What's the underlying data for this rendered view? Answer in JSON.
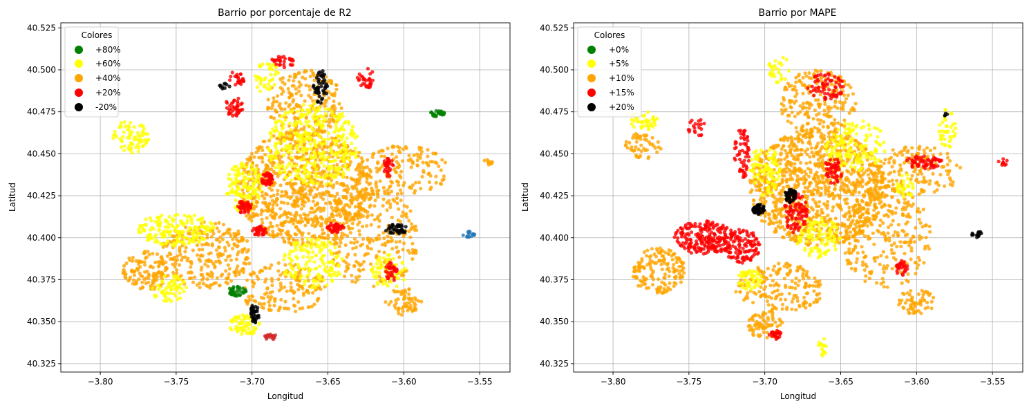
{
  "chart_data": [
    {
      "type": "scatter",
      "title": "Barrio por porcentaje de R2",
      "xlabel": "Longitud",
      "ylabel": "Latitud",
      "xlim": [
        -3.826,
        -3.53
      ],
      "ylim": [
        40.32,
        40.528
      ],
      "xticks": [
        -3.8,
        -3.75,
        -3.7,
        -3.65,
        -3.6,
        -3.55
      ],
      "xtick_labels": [
        "−3.80",
        "−3.75",
        "−3.70",
        "−3.65",
        "−3.60",
        "−3.55"
      ],
      "yticks": [
        40.325,
        40.35,
        40.375,
        40.4,
        40.425,
        40.45,
        40.475,
        40.5,
        40.525
      ],
      "ytick_labels": [
        "40.325",
        "40.350",
        "40.375",
        "40.400",
        "40.425",
        "40.450",
        "40.475",
        "40.500",
        "40.525"
      ],
      "grid": true,
      "legend": {
        "title": "Colores",
        "placement": "top-left",
        "entries": [
          {
            "label": "+80%",
            "color": "#008000"
          },
          {
            "label": "+60%",
            "color": "#ffff00"
          },
          {
            "label": "+40%",
            "color": "#ffa500"
          },
          {
            "label": "+20%",
            "color": "#ff0000"
          },
          {
            "label": "-20%",
            "color": "#000000"
          }
        ]
      },
      "clusters": [
        {
          "color": "#ffa500",
          "lon": -3.665,
          "lat": 40.43,
          "r_lon": 0.045,
          "r_lat": 0.035,
          "n": 900
        },
        {
          "color": "#ffa500",
          "lon": -3.73,
          "lat": 40.39,
          "r_lon": 0.03,
          "r_lat": 0.02,
          "n": 260
        },
        {
          "color": "#ffa500",
          "lon": -3.77,
          "lat": 40.38,
          "r_lon": 0.015,
          "r_lat": 0.012,
          "n": 120
        },
        {
          "color": "#ffa500",
          "lon": -3.62,
          "lat": 40.4,
          "r_lon": 0.03,
          "r_lat": 0.03,
          "n": 260
        },
        {
          "color": "#ffa500",
          "lon": -3.6,
          "lat": 40.44,
          "r_lon": 0.03,
          "r_lat": 0.015,
          "n": 140
        },
        {
          "color": "#ffa500",
          "lon": -3.665,
          "lat": 40.48,
          "r_lon": 0.025,
          "r_lat": 0.02,
          "n": 200
        },
        {
          "color": "#ffa500",
          "lon": -3.68,
          "lat": 40.37,
          "r_lon": 0.03,
          "r_lat": 0.015,
          "n": 160
        },
        {
          "color": "#ffa500",
          "lon": -3.6,
          "lat": 40.362,
          "r_lon": 0.012,
          "r_lat": 0.008,
          "n": 60
        },
        {
          "color": "#ffa500",
          "lon": -3.545,
          "lat": 40.445,
          "r_lon": 0.004,
          "r_lat": 0.002,
          "n": 10
        },
        {
          "color": "#ffff00",
          "lon": -3.66,
          "lat": 40.455,
          "r_lon": 0.03,
          "r_lat": 0.025,
          "n": 360
        },
        {
          "color": "#ffff00",
          "lon": -3.75,
          "lat": 40.405,
          "r_lon": 0.025,
          "r_lat": 0.01,
          "n": 170
        },
        {
          "color": "#ffff00",
          "lon": -3.705,
          "lat": 40.43,
          "r_lon": 0.012,
          "r_lat": 0.015,
          "n": 120
        },
        {
          "color": "#ffff00",
          "lon": -3.66,
          "lat": 40.385,
          "r_lon": 0.02,
          "r_lat": 0.015,
          "n": 150
        },
        {
          "color": "#ffff00",
          "lon": -3.78,
          "lat": 40.46,
          "r_lon": 0.012,
          "r_lat": 0.01,
          "n": 70
        },
        {
          "color": "#ffff00",
          "lon": -3.755,
          "lat": 40.37,
          "r_lon": 0.012,
          "r_lat": 0.008,
          "n": 60
        },
        {
          "color": "#ffff00",
          "lon": -3.705,
          "lat": 40.348,
          "r_lon": 0.01,
          "r_lat": 0.006,
          "n": 60
        },
        {
          "color": "#ffff00",
          "lon": -3.69,
          "lat": 40.495,
          "r_lon": 0.008,
          "r_lat": 0.01,
          "n": 40
        },
        {
          "color": "#ffff00",
          "lon": -3.61,
          "lat": 40.38,
          "r_lon": 0.012,
          "r_lat": 0.01,
          "n": 60
        },
        {
          "color": "#ff0000",
          "lon": -3.69,
          "lat": 40.435,
          "r_lon": 0.004,
          "r_lat": 0.004,
          "n": 40
        },
        {
          "color": "#ff0000",
          "lon": -3.705,
          "lat": 40.418,
          "r_lon": 0.005,
          "r_lat": 0.004,
          "n": 40
        },
        {
          "color": "#ff0000",
          "lon": -3.695,
          "lat": 40.404,
          "r_lon": 0.005,
          "r_lat": 0.003,
          "n": 40
        },
        {
          "color": "#ff0000",
          "lon": -3.712,
          "lat": 40.478,
          "r_lon": 0.006,
          "r_lat": 0.006,
          "n": 40
        },
        {
          "color": "#ff0000",
          "lon": -3.645,
          "lat": 40.406,
          "r_lon": 0.006,
          "r_lat": 0.003,
          "n": 40
        },
        {
          "color": "#ff0000",
          "lon": -3.608,
          "lat": 40.38,
          "r_lon": 0.004,
          "r_lat": 0.006,
          "n": 30
        },
        {
          "color": "#ff0000",
          "lon": -3.61,
          "lat": 40.442,
          "r_lon": 0.004,
          "r_lat": 0.006,
          "n": 30
        },
        {
          "color": "#ff0000",
          "lon": -3.625,
          "lat": 40.495,
          "r_lon": 0.006,
          "r_lat": 0.006,
          "n": 30
        },
        {
          "color": "#ff0000",
          "lon": -3.68,
          "lat": 40.505,
          "r_lon": 0.008,
          "r_lat": 0.004,
          "n": 30
        },
        {
          "color": "#ff0000",
          "lon": -3.71,
          "lat": 40.495,
          "r_lon": 0.006,
          "r_lat": 0.004,
          "n": 25
        },
        {
          "color": "#d22b2b",
          "lon": -3.688,
          "lat": 40.341,
          "r_lon": 0.004,
          "r_lat": 0.002,
          "n": 20
        },
        {
          "color": "#000000",
          "lon": -3.655,
          "lat": 40.49,
          "r_lon": 0.005,
          "r_lat": 0.01,
          "n": 50
        },
        {
          "color": "#000000",
          "lon": -3.605,
          "lat": 40.405,
          "r_lon": 0.008,
          "r_lat": 0.003,
          "n": 40
        },
        {
          "color": "#000000",
          "lon": -3.698,
          "lat": 40.355,
          "r_lon": 0.003,
          "r_lat": 0.006,
          "n": 35
        },
        {
          "color": "#000000",
          "lon": -3.718,
          "lat": 40.49,
          "r_lon": 0.004,
          "r_lat": 0.002,
          "n": 10
        },
        {
          "color": "#008000",
          "lon": -3.71,
          "lat": 40.368,
          "r_lon": 0.006,
          "r_lat": 0.003,
          "n": 40
        },
        {
          "color": "#008000",
          "lon": -3.578,
          "lat": 40.474,
          "r_lon": 0.005,
          "r_lat": 0.002,
          "n": 25
        },
        {
          "color": "#1f77b4",
          "lon": -3.557,
          "lat": 40.402,
          "r_lon": 0.004,
          "r_lat": 0.002,
          "n": 15
        }
      ]
    },
    {
      "type": "scatter",
      "title": "Barrio por MAPE",
      "xlabel": "Longitud",
      "ylabel": "Latitud",
      "xlim": [
        -3.826,
        -3.53
      ],
      "ylim": [
        40.32,
        40.528
      ],
      "xticks": [
        -3.8,
        -3.75,
        -3.7,
        -3.65,
        -3.6,
        -3.55
      ],
      "xtick_labels": [
        "−3.80",
        "−3.75",
        "−3.70",
        "−3.65",
        "−3.60",
        "−3.55"
      ],
      "yticks": [
        40.325,
        40.35,
        40.375,
        40.4,
        40.425,
        40.45,
        40.475,
        40.5,
        40.525
      ],
      "ytick_labels": [
        "40.325",
        "40.350",
        "40.375",
        "40.400",
        "40.425",
        "40.450",
        "40.475",
        "40.500",
        "40.525"
      ],
      "grid": true,
      "legend": {
        "title": "Colores",
        "placement": "top-left",
        "entries": [
          {
            "label": "+0%",
            "color": "#008000"
          },
          {
            "label": "+5%",
            "color": "#ffff00"
          },
          {
            "label": "+10%",
            "color": "#ffa500"
          },
          {
            "label": "+15%",
            "color": "#ff0000"
          },
          {
            "label": "+20%",
            "color": "#000000"
          }
        ]
      },
      "clusters": [
        {
          "color": "#ffa500",
          "lon": -3.665,
          "lat": 40.43,
          "r_lon": 0.045,
          "r_lat": 0.035,
          "n": 1000
        },
        {
          "color": "#ffa500",
          "lon": -3.77,
          "lat": 40.38,
          "r_lon": 0.018,
          "r_lat": 0.014,
          "n": 160
        },
        {
          "color": "#ffa500",
          "lon": -3.62,
          "lat": 40.4,
          "r_lon": 0.03,
          "r_lat": 0.03,
          "n": 260
        },
        {
          "color": "#ffa500",
          "lon": -3.6,
          "lat": 40.44,
          "r_lon": 0.03,
          "r_lat": 0.015,
          "n": 140
        },
        {
          "color": "#ffa500",
          "lon": -3.665,
          "lat": 40.48,
          "r_lon": 0.025,
          "r_lat": 0.02,
          "n": 200
        },
        {
          "color": "#ffa500",
          "lon": -3.69,
          "lat": 40.37,
          "r_lon": 0.03,
          "r_lat": 0.015,
          "n": 180
        },
        {
          "color": "#ffa500",
          "lon": -3.7,
          "lat": 40.348,
          "r_lon": 0.012,
          "r_lat": 0.008,
          "n": 70
        },
        {
          "color": "#ffa500",
          "lon": -3.6,
          "lat": 40.362,
          "r_lon": 0.012,
          "r_lat": 0.008,
          "n": 60
        },
        {
          "color": "#ffa500",
          "lon": -3.78,
          "lat": 40.455,
          "r_lon": 0.012,
          "r_lat": 0.008,
          "n": 50
        },
        {
          "color": "#ffff00",
          "lon": -3.64,
          "lat": 40.455,
          "r_lon": 0.02,
          "r_lat": 0.015,
          "n": 140
        },
        {
          "color": "#ffff00",
          "lon": -3.7,
          "lat": 40.44,
          "r_lon": 0.01,
          "r_lat": 0.015,
          "n": 90
        },
        {
          "color": "#ffff00",
          "lon": -3.665,
          "lat": 40.4,
          "r_lon": 0.015,
          "r_lat": 0.012,
          "n": 100
        },
        {
          "color": "#ffff00",
          "lon": -3.71,
          "lat": 40.375,
          "r_lon": 0.008,
          "r_lat": 0.006,
          "n": 50
        },
        {
          "color": "#ffff00",
          "lon": -3.78,
          "lat": 40.47,
          "r_lon": 0.01,
          "r_lat": 0.006,
          "n": 40
        },
        {
          "color": "#ffff00",
          "lon": -3.58,
          "lat": 40.465,
          "r_lon": 0.006,
          "r_lat": 0.012,
          "n": 40
        },
        {
          "color": "#ffff00",
          "lon": -3.69,
          "lat": 40.5,
          "r_lon": 0.008,
          "r_lat": 0.008,
          "n": 30
        },
        {
          "color": "#ffff00",
          "lon": -3.608,
          "lat": 40.43,
          "r_lon": 0.006,
          "r_lat": 0.008,
          "n": 30
        },
        {
          "color": "#ffff00",
          "lon": -3.662,
          "lat": 40.335,
          "r_lon": 0.003,
          "r_lat": 0.006,
          "n": 15
        },
        {
          "color": "#ff0000",
          "lon": -3.74,
          "lat": 40.4,
          "r_lon": 0.02,
          "r_lat": 0.01,
          "n": 220
        },
        {
          "color": "#ff0000",
          "lon": -3.715,
          "lat": 40.395,
          "r_lon": 0.012,
          "r_lat": 0.01,
          "n": 120
        },
        {
          "color": "#ff0000",
          "lon": -3.68,
          "lat": 40.415,
          "r_lon": 0.008,
          "r_lat": 0.012,
          "n": 90
        },
        {
          "color": "#ff0000",
          "lon": -3.655,
          "lat": 40.44,
          "r_lon": 0.006,
          "r_lat": 0.008,
          "n": 50
        },
        {
          "color": "#ff0000",
          "lon": -3.66,
          "lat": 40.49,
          "r_lon": 0.012,
          "r_lat": 0.008,
          "n": 70
        },
        {
          "color": "#ff0000",
          "lon": -3.715,
          "lat": 40.45,
          "r_lon": 0.005,
          "r_lat": 0.015,
          "n": 60
        },
        {
          "color": "#ff0000",
          "lon": -3.595,
          "lat": 40.445,
          "r_lon": 0.012,
          "r_lat": 0.004,
          "n": 60
        },
        {
          "color": "#ff0000",
          "lon": -3.61,
          "lat": 40.382,
          "r_lon": 0.004,
          "r_lat": 0.005,
          "n": 30
        },
        {
          "color": "#ff0000",
          "lon": -3.745,
          "lat": 40.465,
          "r_lon": 0.006,
          "r_lat": 0.006,
          "n": 20
        },
        {
          "color": "#ff0000",
          "lon": -3.693,
          "lat": 40.342,
          "r_lon": 0.004,
          "r_lat": 0.003,
          "n": 25
        },
        {
          "color": "#ff0000",
          "lon": -3.543,
          "lat": 40.445,
          "r_lon": 0.003,
          "r_lat": 0.002,
          "n": 10
        },
        {
          "color": "#000000",
          "lon": -3.704,
          "lat": 40.417,
          "r_lon": 0.004,
          "r_lat": 0.003,
          "n": 45
        },
        {
          "color": "#000000",
          "lon": -3.683,
          "lat": 40.425,
          "r_lon": 0.004,
          "r_lat": 0.004,
          "n": 45
        },
        {
          "color": "#000000",
          "lon": -3.56,
          "lat": 40.402,
          "r_lon": 0.004,
          "r_lat": 0.002,
          "n": 15
        },
        {
          "color": "#000000",
          "lon": -3.58,
          "lat": 40.473,
          "r_lon": 0.002,
          "r_lat": 0.002,
          "n": 4
        }
      ]
    }
  ]
}
